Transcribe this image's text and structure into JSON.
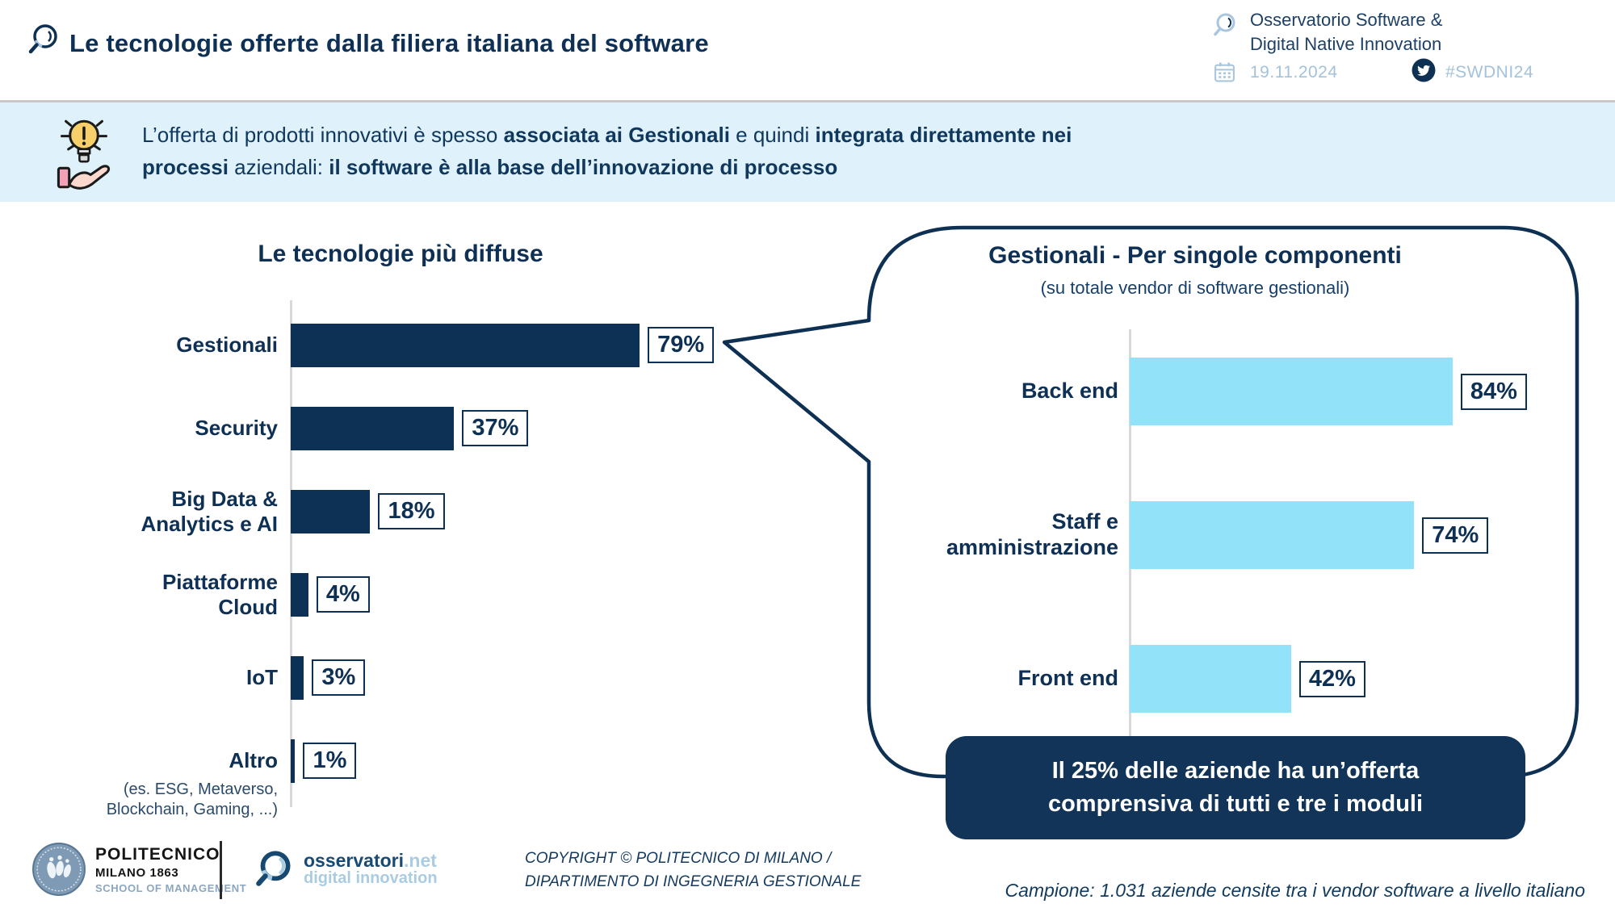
{
  "header": {
    "title": "Le tecnologie offerte dalla filiera italiana del software",
    "observatory": {
      "line1": "Osservatorio Software &",
      "line2": "Digital Native Innovation"
    },
    "date": "19.11.2024",
    "hashtag": "#SWDNI24"
  },
  "banner": {
    "segments": [
      {
        "text": "L’offerta di prodotti innovativi è spesso ",
        "bold": false
      },
      {
        "text": "associata ai Gestionali",
        "bold": true
      },
      {
        "text": " e quindi ",
        "bold": false
      },
      {
        "text": "integrata direttamente nei",
        "bold": true
      },
      {
        "br": true
      },
      {
        "text": "processi",
        "bold": true
      },
      {
        "text": " aziendali: ",
        "bold": false
      },
      {
        "text": "il software è alla base dell’innovazione di processo",
        "bold": true
      }
    ]
  },
  "chart_data": [
    {
      "type": "bar",
      "orientation": "horizontal",
      "title": "Le tecnologie più diffuse",
      "categories": [
        "Gestionali",
        "Security",
        "Big Data &\nAnalytics e AI",
        "Piattaforme\nCloud",
        "IoT",
        "Altro"
      ],
      "values": [
        79,
        37,
        18,
        4,
        3,
        1
      ],
      "unit": "%",
      "bar_color": "#0d3155",
      "xlim": [
        0,
        100
      ],
      "grid": false,
      "note_lines": [
        "(es. ESG, Metaverso,",
        "Blockchain, Gaming, ...)"
      ]
    },
    {
      "type": "bar",
      "orientation": "horizontal",
      "title": "Gestionali - Per singole componenti",
      "subtitle": "(su totale vendor di software gestionali)",
      "categories": [
        "Back end",
        "Staff e\namministrazione",
        "Front end"
      ],
      "values": [
        84,
        74,
        42
      ],
      "unit": "%",
      "bar_color": "#92e2fa",
      "xlim": [
        0,
        100
      ],
      "grid": false
    }
  ],
  "callout": {
    "line1": "Il 25% delle aziende ha un’offerta",
    "line2": "comprensiva di tutti e tre i moduli"
  },
  "footnote": {
    "campione": "Campione: 1.031 aziende censite tra i vendor software a livello italiano"
  },
  "footer": {
    "polimi": {
      "line1": "POLITECNICO",
      "line2": "MILANO 1863",
      "line3": "SCHOOL OF MANAGEMENT"
    },
    "osservatori": {
      "name": "osservatori",
      "net": ".net",
      "tagline": "digital innovation"
    },
    "copyright": {
      "line1": "COPYRIGHT © POLITECNICO DI MILANO /",
      "line2": "DIPARTIMENTO DI INGEGNERIA GESTIONALE"
    }
  },
  "colors": {
    "navy": "#0d3155",
    "light_blue_bar": "#92e2fa",
    "banner_bg": "#dff2fb",
    "muted_blue_text": "#a4c2da",
    "axis_gray": "#d9d9d9",
    "callout_bg": "#123458"
  }
}
